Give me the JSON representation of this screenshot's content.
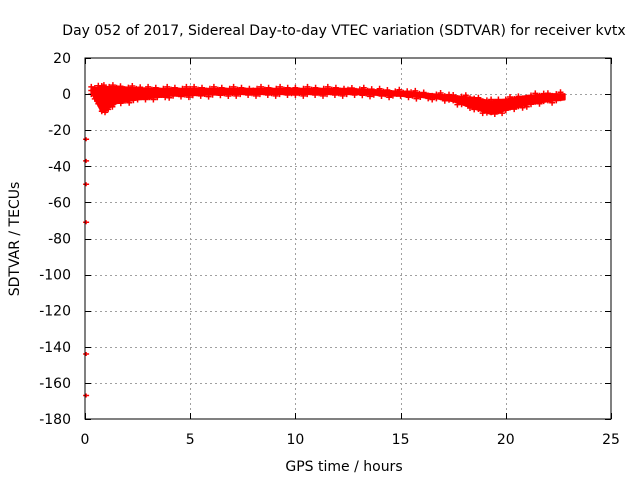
{
  "chart_data": {
    "type": "scatter",
    "title": "Day 052 of 2017, Sidereal Day-to-day VTEC variation (SDTVAR) for receiver kvtx",
    "xlabel": "GPS time / hours",
    "ylabel": "SDTVAR / TECUs",
    "xlim": [
      0,
      25
    ],
    "ylim": [
      -180,
      20
    ],
    "xticks": [
      0,
      5,
      10,
      15,
      20,
      25
    ],
    "yticks": [
      20,
      0,
      -20,
      -40,
      -60,
      -80,
      -100,
      -120,
      -140,
      -160,
      -180
    ],
    "grid": true,
    "color": "#ff0000",
    "series": [
      {
        "name": "SDTVAR",
        "description": "dense band of points",
        "upper": [
          [
            0.3,
            3
          ],
          [
            0.8,
            4
          ],
          [
            1.5,
            4
          ],
          [
            3,
            3
          ],
          [
            5,
            3
          ],
          [
            8,
            3
          ],
          [
            10,
            3
          ],
          [
            12.5,
            3
          ],
          [
            14,
            2
          ],
          [
            15.5,
            1
          ],
          [
            16.5,
            0
          ],
          [
            17.5,
            -1
          ],
          [
            18.5,
            -2
          ],
          [
            19.3,
            -4
          ],
          [
            20,
            -3
          ],
          [
            21,
            -1
          ],
          [
            22,
            0
          ],
          [
            22.8,
            0
          ]
        ],
        "lower": [
          [
            0.3,
            1
          ],
          [
            0.8,
            -10
          ],
          [
            1.1,
            -8
          ],
          [
            1.5,
            -5
          ],
          [
            2.5,
            -3
          ],
          [
            4,
            -1
          ],
          [
            7,
            0
          ],
          [
            10,
            0
          ],
          [
            13,
            0
          ],
          [
            15,
            -1
          ],
          [
            16.5,
            -2
          ],
          [
            17.5,
            -4
          ],
          [
            18.5,
            -8
          ],
          [
            19.3,
            -11
          ],
          [
            20,
            -9
          ],
          [
            21,
            -6
          ],
          [
            22,
            -4
          ],
          [
            22.8,
            -3
          ]
        ]
      },
      {
        "name": "outliers",
        "description": "isolated points near x=0",
        "points": [
          [
            0.05,
            -25
          ],
          [
            0.05,
            -37
          ],
          [
            0.05,
            -50
          ],
          [
            0.05,
            -71
          ],
          [
            0.05,
            -144
          ],
          [
            0.05,
            -167
          ]
        ]
      }
    ]
  }
}
